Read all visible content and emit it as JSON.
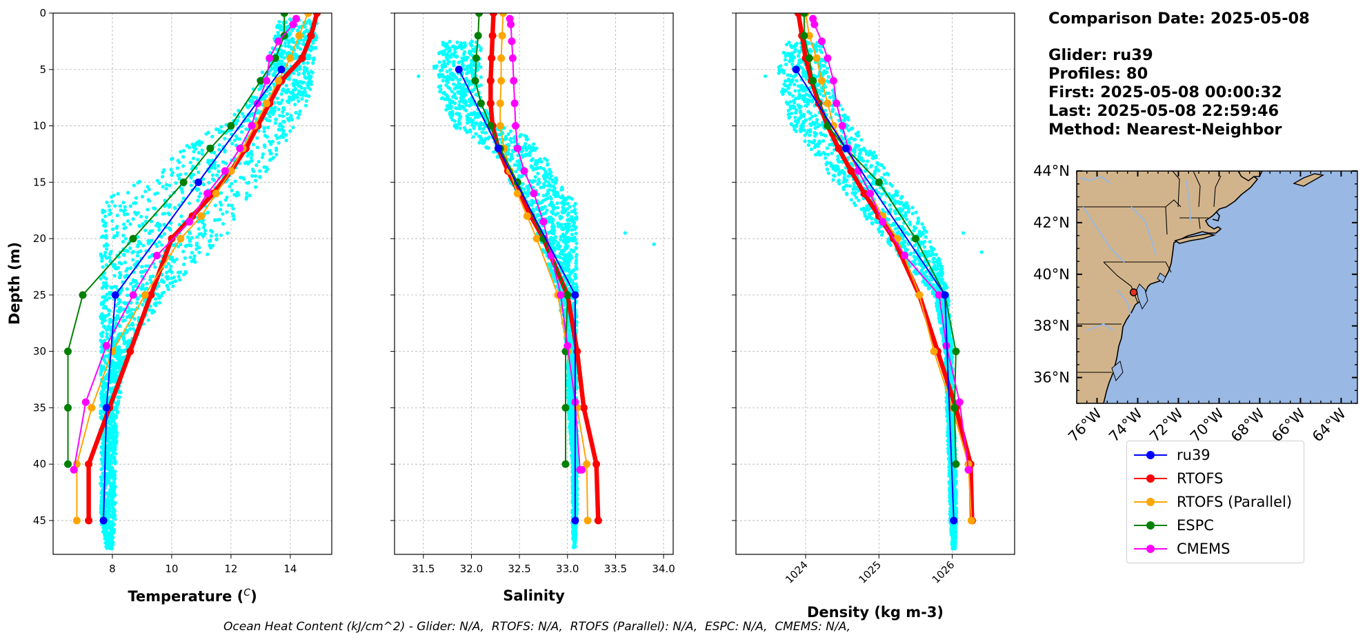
{
  "info": {
    "comparison": "Comparison Date: 2025-05-08",
    "glider": "Glider: ru39",
    "profiles": "Profiles: 80",
    "first": "First: 2025-05-08 00:00:32",
    "last": "Last: 2025-05-08 22:59:46",
    "method": "Method: Nearest-Neighbor"
  },
  "footer": "Ocean Heat Content (kJ/cm^2) - Glider: N/A,  RTOFS: N/A,  RTOFS (Parallel): N/A,  ESPC: N/A,  CMEMS: N/A,",
  "legend": [
    {
      "name": "ru39",
      "color": "#0000ff"
    },
    {
      "name": "RTOFS",
      "color": "#ff0000"
    },
    {
      "name": "RTOFS (Parallel)",
      "color": "#ffa500"
    },
    {
      "name": "ESPC",
      "color": "#008000"
    },
    {
      "name": "CMEMS",
      "color": "#ff00ff"
    }
  ],
  "colors": {
    "scatter": "#00ffff",
    "land": "#d2b48c",
    "ocean": "#99b8e3",
    "grid": "#b0b0b0"
  },
  "map": {
    "lat_ticks": [
      "44°N",
      "42°N",
      "40°N",
      "38°N",
      "36°N"
    ],
    "lon_ticks": [
      "76°W",
      "74°W",
      "72°W",
      "70°W",
      "68°W",
      "66°W",
      "64°W"
    ],
    "glider_position": {
      "lon": -74.2,
      "lat": 39.3
    }
  },
  "chart_data": [
    {
      "type": "line",
      "xlabel": "Temperature (°C)",
      "ylabel": "Depth (m)",
      "xlim": [
        6.0,
        15.4
      ],
      "ylim": [
        48,
        0
      ],
      "x_ticks": [
        8,
        10,
        12,
        14
      ],
      "y_ticks": [
        0,
        5,
        10,
        15,
        20,
        25,
        30,
        35,
        40,
        45
      ],
      "grid": true,
      "scatter_band": [
        [
          0.5,
          13.6,
          14.9
        ],
        [
          3,
          13.4,
          14.9
        ],
        [
          5,
          13.1,
          14.8
        ],
        [
          8,
          12.5,
          14.6
        ],
        [
          10,
          11.6,
          14.2
        ],
        [
          12,
          10.3,
          13.7
        ],
        [
          14,
          9.6,
          13.2
        ],
        [
          16,
          8.0,
          12.8
        ],
        [
          17,
          7.6,
          12.4
        ],
        [
          20,
          7.6,
          11.8
        ],
        [
          22,
          7.6,
          11.0
        ],
        [
          25,
          7.6,
          9.8
        ],
        [
          30,
          7.6,
          8.5
        ],
        [
          35,
          7.6,
          8.2
        ],
        [
          40,
          7.6,
          8.1
        ],
        [
          45,
          7.6,
          8.1
        ],
        [
          47.5,
          7.8,
          8.0
        ]
      ],
      "series": [
        {
          "name": "ru39",
          "x": [
            13.7,
            10.9,
            8.1,
            7.8,
            7.7
          ],
          "y": [
            5,
            15,
            25,
            35,
            45
          ]
        },
        {
          "name": "RTOFS",
          "x": [
            14.9,
            14.7,
            14.4,
            13.7,
            13.3,
            12.9,
            12.5,
            12.0,
            11.4,
            10.7,
            10.0,
            9.3,
            8.6,
            7.9,
            7.2,
            7.2
          ],
          "y": [
            0,
            2,
            4,
            6,
            8,
            10,
            12,
            14,
            16,
            18,
            20,
            25,
            30,
            35,
            40,
            45
          ]
        },
        {
          "name": "RTOFS (Parallel)",
          "x": [
            14.6,
            14.3,
            14.0,
            13.6,
            13.2,
            12.8,
            12.4,
            12.0,
            11.5,
            11.0,
            10.3,
            9.1,
            8.0,
            7.3,
            6.8,
            6.8
          ],
          "y": [
            0,
            2,
            4,
            6,
            8,
            10,
            12,
            14,
            16,
            18,
            20,
            25,
            30,
            35,
            40,
            45
          ]
        },
        {
          "name": "ESPC",
          "x": [
            13.8,
            13.8,
            13.5,
            13.0,
            12.0,
            11.3,
            10.4,
            8.7,
            7.0,
            6.5,
            6.5,
            6.5
          ],
          "y": [
            0,
            2,
            4,
            6,
            10,
            12,
            15,
            20,
            25,
            30,
            35,
            40
          ]
        },
        {
          "name": "CMEMS",
          "x": [
            14.2,
            14.1,
            13.6,
            13.3,
            13.2,
            12.9,
            12.7,
            12.3,
            11.8,
            11.2,
            10.6,
            9.5,
            8.7,
            7.8,
            7.1,
            6.7
          ],
          "y": [
            0.5,
            1,
            2.5,
            4,
            6,
            8,
            10,
            12,
            14,
            16,
            18.5,
            21.5,
            25,
            29.5,
            34.5,
            40.5
          ]
        }
      ]
    },
    {
      "type": "line",
      "xlabel": "Salinity",
      "ylabel": "",
      "xlim": [
        31.2,
        34.1
      ],
      "ylim": [
        48,
        0
      ],
      "x_ticks": [
        31.5,
        32.0,
        32.5,
        33.0,
        33.5,
        34.0
      ],
      "y_ticks": [
        0,
        5,
        10,
        15,
        20,
        25,
        30,
        35,
        40,
        45
      ],
      "grid": true,
      "scatter_band": [
        [
          2.5,
          31.7,
          32.1
        ],
        [
          5,
          31.6,
          32.1
        ],
        [
          8,
          31.7,
          32.1
        ],
        [
          10,
          31.8,
          32.3
        ],
        [
          11,
          32.0,
          32.6
        ],
        [
          13,
          32.3,
          32.8
        ],
        [
          15,
          32.4,
          32.9
        ],
        [
          17,
          32.6,
          33.1
        ],
        [
          20,
          32.7,
          33.1
        ],
        [
          25,
          32.9,
          33.1
        ],
        [
          30,
          33.0,
          33.1
        ],
        [
          35,
          33.0,
          33.1
        ],
        [
          40,
          33.05,
          33.1
        ],
        [
          45,
          33.05,
          33.1
        ],
        [
          47.5,
          33.06,
          33.08
        ]
      ],
      "scatter_outliers": [
        [
          31.45,
          5.6
        ],
        [
          33.6,
          19.5
        ],
        [
          33.9,
          20.5
        ]
      ],
      "series": [
        {
          "name": "ru39",
          "x": [
            31.87,
            32.28,
            33.08,
            33.08
          ],
          "y": [
            5,
            12,
            25,
            45
          ]
        },
        {
          "name": "RTOFS",
          "x": [
            32.23,
            32.22,
            32.21,
            32.2,
            32.2,
            32.22,
            32.28,
            32.38,
            32.5,
            32.62,
            32.75,
            33.0,
            33.1,
            33.17,
            33.3,
            33.32
          ],
          "y": [
            0,
            2,
            4,
            6,
            8,
            10,
            12,
            14,
            16,
            18,
            20,
            25,
            30,
            35,
            40,
            45
          ]
        },
        {
          "name": "RTOFS (Parallel)",
          "x": [
            32.33,
            32.32,
            32.31,
            32.31,
            32.3,
            32.3,
            32.34,
            32.4,
            32.48,
            32.58,
            32.68,
            32.9,
            33.0,
            33.1,
            33.2,
            33.21
          ],
          "y": [
            0,
            2,
            4,
            6,
            8,
            10,
            12,
            14,
            16,
            18,
            20,
            25,
            30,
            35,
            40,
            45
          ]
        },
        {
          "name": "ESPC",
          "x": [
            32.08,
            32.07,
            32.05,
            32.04,
            32.1,
            32.2,
            32.3,
            32.48,
            32.75,
            33.0,
            32.98,
            32.98,
            32.98
          ],
          "y": [
            0,
            2,
            4,
            6,
            8,
            10,
            12,
            15,
            20,
            25,
            30,
            35,
            40
          ]
        },
        {
          "name": "CMEMS",
          "x": [
            32.4,
            32.41,
            32.42,
            32.43,
            32.44,
            32.45,
            32.46,
            32.48,
            32.55,
            32.65,
            32.75,
            32.83,
            32.93,
            33.0,
            33.08,
            33.13,
            33.15
          ],
          "y": [
            0.5,
            1,
            2.5,
            4,
            6,
            8,
            10,
            12,
            14,
            16,
            18.5,
            21.5,
            25,
            29.5,
            34.5,
            40.5,
            40.5
          ]
        }
      ]
    },
    {
      "type": "line",
      "xlabel": "Density (kg m-3)",
      "ylabel": "",
      "xlim": [
        1023.05,
        1026.85
      ],
      "ylim": [
        48,
        0
      ],
      "x_ticks": [
        1024,
        1025,
        1026
      ],
      "y_ticks": [
        0,
        5,
        10,
        15,
        20,
        25,
        30,
        35,
        40,
        45
      ],
      "grid": true,
      "scatter_band": [
        [
          2.5,
          1023.75,
          1024.25
        ],
        [
          5,
          1023.6,
          1024.3
        ],
        [
          8,
          1023.7,
          1024.45
        ],
        [
          10,
          1023.8,
          1024.65
        ],
        [
          12,
          1024.05,
          1024.9
        ],
        [
          15,
          1024.4,
          1025.2
        ],
        [
          18,
          1024.8,
          1025.55
        ],
        [
          20,
          1025.05,
          1025.7
        ],
        [
          22,
          1025.35,
          1025.85
        ],
        [
          25,
          1025.75,
          1025.95
        ],
        [
          30,
          1025.9,
          1026.0
        ],
        [
          35,
          1025.92,
          1026.02
        ],
        [
          40,
          1025.95,
          1026.05
        ],
        [
          45,
          1025.97,
          1026.06
        ],
        [
          47.5,
          1026.0,
          1026.04
        ]
      ],
      "scatter_outliers": [
        [
          1023.45,
          5.6
        ],
        [
          1026.15,
          19.5
        ],
        [
          1026.4,
          21.2
        ]
      ],
      "series": [
        {
          "name": "ru39",
          "x": [
            1023.87,
            1024.55,
            1025.9,
            1026.02
          ],
          "y": [
            5,
            12,
            25,
            45
          ]
        },
        {
          "name": "RTOFS",
          "x": [
            1023.9,
            1023.95,
            1024.0,
            1024.08,
            1024.18,
            1024.3,
            1024.45,
            1024.62,
            1024.8,
            1025.0,
            1025.2,
            1025.55,
            1025.8,
            1026.05,
            1026.25,
            1026.27
          ],
          "y": [
            0,
            2,
            4,
            6,
            8,
            10,
            12,
            14,
            16,
            18,
            20,
            25,
            30,
            35,
            40,
            45
          ]
        },
        {
          "name": "RTOFS (Parallel)",
          "x": [
            1024.0,
            1024.05,
            1024.15,
            1024.22,
            1024.3,
            1024.38,
            1024.55,
            1024.72,
            1024.88,
            1025.05,
            1025.25,
            1025.55,
            1025.75,
            1026.0,
            1026.22,
            1026.26
          ],
          "y": [
            0,
            2,
            4,
            6,
            8,
            10,
            12,
            14,
            16,
            18,
            20,
            25,
            30,
            35,
            40,
            45
          ]
        },
        {
          "name": "ESPC",
          "x": [
            1023.98,
            1023.98,
            1024.05,
            1024.1,
            1024.3,
            1024.55,
            1025.0,
            1025.5,
            1025.9,
            1026.05,
            1026.03,
            1026.05
          ],
          "y": [
            0,
            2,
            4,
            6,
            10,
            12,
            15,
            20,
            25,
            30,
            35,
            40
          ]
        },
        {
          "name": "CMEMS",
          "x": [
            1024.1,
            1024.12,
            1024.22,
            1024.3,
            1024.38,
            1024.42,
            1024.5,
            1024.58,
            1024.72,
            1024.88,
            1025.05,
            1025.35,
            1025.82,
            1025.92,
            1026.1,
            1026.22
          ],
          "y": [
            0.5,
            1,
            2.5,
            4,
            6,
            8,
            10,
            12,
            14,
            16,
            18.5,
            21.5,
            25,
            29.5,
            34.5,
            40.5
          ]
        }
      ]
    }
  ]
}
